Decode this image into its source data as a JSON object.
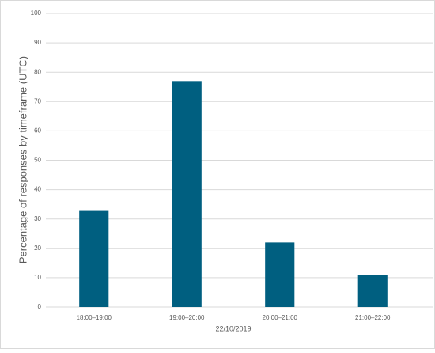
{
  "chart_data": {
    "type": "bar",
    "x_label": "22/10/2019",
    "y_label": "Percentage of responses by timeframe (UTC)",
    "categories": [
      "18:00–19:00",
      "19:00–20:00",
      "20:00–21:00",
      "21:00–22:00"
    ],
    "values": [
      33,
      77,
      22,
      11
    ],
    "color": "#005f80",
    "ylim": [
      0,
      100
    ],
    "yticks": [
      0,
      10,
      20,
      30,
      40,
      50,
      60,
      70,
      80,
      90,
      100
    ],
    "grid": true
  }
}
